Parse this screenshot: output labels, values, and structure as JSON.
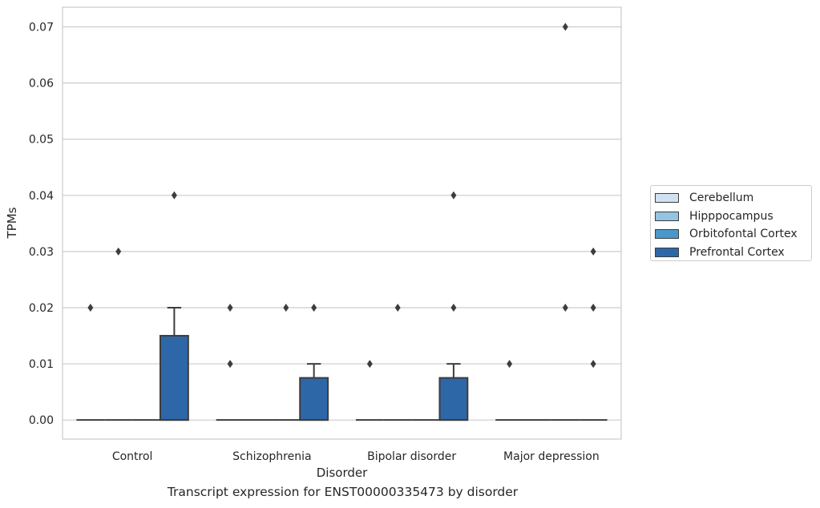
{
  "chart_data": {
    "type": "box",
    "xlabel": "Disorder",
    "ylabel": "TPMs",
    "caption": "Transcript expression for ENST00000335473 by disorder",
    "categories": [
      "Control",
      "Schizophrenia",
      "Bipolar disorder",
      "Major depression"
    ],
    "yticks": [
      "0.00",
      "0.01",
      "0.02",
      "0.03",
      "0.04",
      "0.05",
      "0.06",
      "0.07"
    ],
    "ylim": [
      -0.0034,
      0.0735
    ],
    "grid": "horizontal",
    "legend_position": "right, outside plot",
    "series": [
      {
        "name": "Cerebellum",
        "color": "#d0e1f2",
        "boxes": [
          {
            "q1": 0,
            "median": 0,
            "q3": 0,
            "whisker_low": 0,
            "whisker_high": 0,
            "outliers": [
              0.02
            ]
          },
          {
            "q1": 0,
            "median": 0,
            "q3": 0,
            "whisker_low": 0,
            "whisker_high": 0,
            "outliers": [
              0.02,
              0.01
            ]
          },
          {
            "q1": 0,
            "median": 0,
            "q3": 0,
            "whisker_low": 0,
            "whisker_high": 0,
            "outliers": [
              0.01
            ]
          },
          {
            "q1": 0,
            "median": 0,
            "q3": 0,
            "whisker_low": 0,
            "whisker_high": 0,
            "outliers": [
              0.01
            ]
          }
        ]
      },
      {
        "name": "Hipppocampus",
        "color": "#94c4df",
        "boxes": [
          {
            "q1": 0,
            "median": 0,
            "q3": 0,
            "whisker_low": 0,
            "whisker_high": 0,
            "outliers": [
              0.03
            ]
          },
          {
            "q1": 0,
            "median": 0,
            "q3": 0,
            "whisker_low": 0,
            "whisker_high": 0,
            "outliers": []
          },
          {
            "q1": 0,
            "median": 0,
            "q3": 0,
            "whisker_low": 0,
            "whisker_high": 0,
            "outliers": [
              0.02
            ]
          },
          {
            "q1": 0,
            "median": 0,
            "q3": 0,
            "whisker_low": 0,
            "whisker_high": 0,
            "outliers": []
          }
        ]
      },
      {
        "name": "Orbitofontal Cortex",
        "color": "#4a98c9",
        "boxes": [
          {
            "q1": 0,
            "median": 0,
            "q3": 0,
            "whisker_low": 0,
            "whisker_high": 0,
            "outliers": []
          },
          {
            "q1": 0,
            "median": 0,
            "q3": 0,
            "whisker_low": 0,
            "whisker_high": 0,
            "outliers": [
              0.02
            ]
          },
          {
            "q1": 0,
            "median": 0,
            "q3": 0,
            "whisker_low": 0,
            "whisker_high": 0,
            "outliers": []
          },
          {
            "q1": 0,
            "median": 0,
            "q3": 0,
            "whisker_low": 0,
            "whisker_high": 0,
            "outliers": [
              0.07,
              0.02
            ]
          }
        ]
      },
      {
        "name": "Prefrontal Cortex",
        "color": "#2e67a8",
        "boxes": [
          {
            "q1": 0,
            "median": 0,
            "q3": 0.015,
            "whisker_low": 0,
            "whisker_high": 0.02,
            "outliers": [
              0.04
            ]
          },
          {
            "q1": 0,
            "median": 0,
            "q3": 0.0075,
            "whisker_low": 0,
            "whisker_high": 0.01,
            "outliers": [
              0.02
            ]
          },
          {
            "q1": 0,
            "median": 0,
            "q3": 0.0075,
            "whisker_low": 0,
            "whisker_high": 0.01,
            "outliers": [
              0.04,
              0.02
            ]
          },
          {
            "q1": 0,
            "median": 0,
            "q3": 0,
            "whisker_low": 0,
            "whisker_high": 0,
            "outliers": [
              0.03,
              0.02,
              0.01
            ]
          }
        ]
      }
    ]
  }
}
